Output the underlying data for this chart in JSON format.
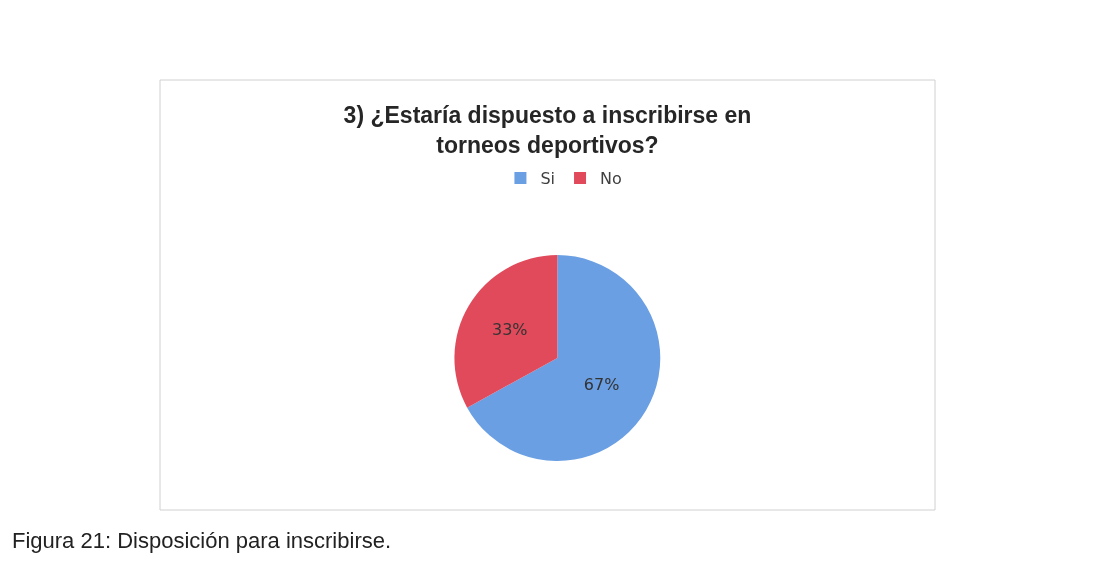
{
  "chart_data": {
    "type": "pie",
    "title": "3) ¿Estaría dispuesto a inscribirse en\ntorneos deportivos?",
    "categories": [
      "Si",
      "No"
    ],
    "values": [
      67,
      33
    ],
    "value_labels": [
      "67%",
      "33%"
    ],
    "colors": [
      "#6a9fe3",
      "#e04a5b"
    ],
    "legend": "top",
    "annotations": [
      "Figura 21: Disposición para inscribirse."
    ]
  }
}
